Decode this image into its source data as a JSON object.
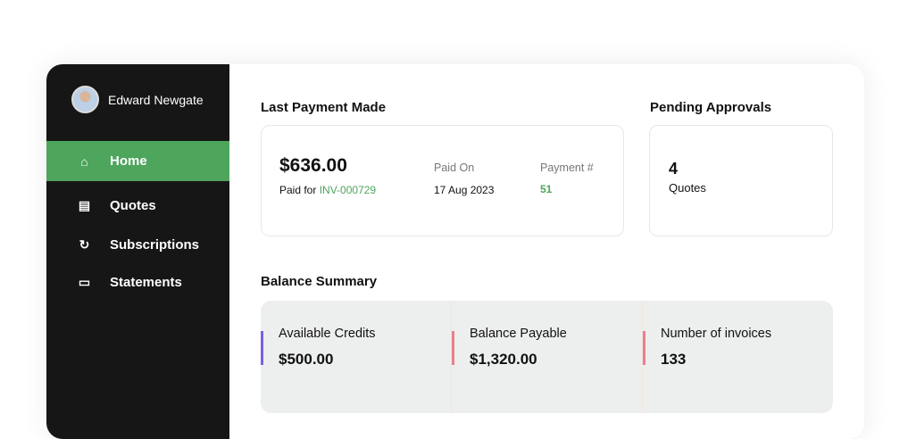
{
  "user": {
    "name": "Edward Newgate"
  },
  "sidebar": {
    "items": [
      {
        "label": "Home",
        "icon": "home-icon",
        "active": true
      },
      {
        "label": "Quotes",
        "icon": "calculator-icon"
      },
      {
        "label": "Subscriptions",
        "icon": "refresh-check-icon"
      },
      {
        "label": "Statements",
        "icon": "document-icon"
      }
    ]
  },
  "last_payment": {
    "title": "Last Payment Made",
    "amount": "$636.00",
    "paid_for_label": "Paid for",
    "invoice": "INV-000729",
    "paid_on_label": "Paid On",
    "paid_on": "17 Aug 2023",
    "payment_no_label": "Payment #",
    "payment_no": "51"
  },
  "pending": {
    "title": "Pending Approvals",
    "count": "4",
    "label": "Quotes"
  },
  "balance": {
    "title": "Balance Summary",
    "items": [
      {
        "label": "Available Credits",
        "value": "$500.00",
        "color": "#7b5fe0"
      },
      {
        "label": "Balance Payable",
        "value": "$1,320.00",
        "color": "#e8808f"
      },
      {
        "label": "Number of invoices",
        "value": "133",
        "color": "#e8808f"
      }
    ]
  },
  "colors": {
    "accent": "#4ea55c",
    "sidebar": "#161616"
  }
}
